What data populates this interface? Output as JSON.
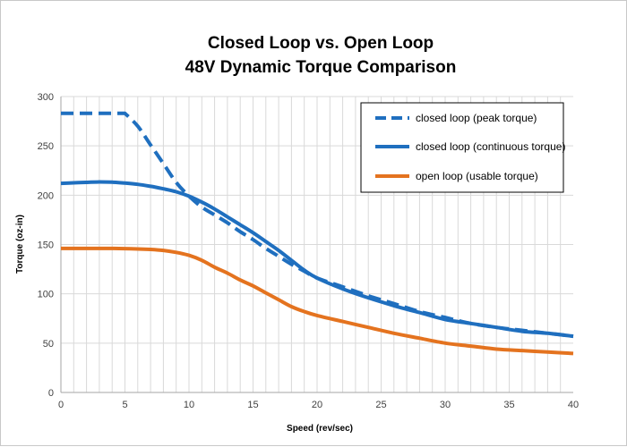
{
  "chart_data": {
    "type": "line",
    "title": "Closed Loop vs. Open Loop",
    "subtitle": "48V Dynamic Torque Comparison",
    "xlabel": "Speed (rev/sec)",
    "ylabel": "Torque (oz-in)",
    "xlim": [
      0,
      40
    ],
    "ylim": [
      0,
      300
    ],
    "x_ticks": [
      0,
      5,
      10,
      15,
      20,
      25,
      30,
      35,
      40
    ],
    "y_ticks": [
      0,
      50,
      100,
      150,
      200,
      250,
      300
    ],
    "x_tick_labels": [
      "0",
      "5",
      "10",
      "15",
      "20",
      "25",
      "30",
      "35",
      "40"
    ],
    "y_tick_labels": [
      "0",
      "50",
      "100",
      "150",
      "200",
      "250",
      "300"
    ],
    "grid": true,
    "legend_position": "top-right",
    "series": [
      {
        "name": "closed loop (peak torque)",
        "color": "#1f6fbf",
        "style": "dashed",
        "x": [
          0,
          5,
          6,
          7,
          8,
          9,
          10,
          11,
          12,
          13,
          14,
          15,
          16,
          17,
          18,
          19,
          20,
          22,
          24,
          26,
          28,
          30,
          32,
          34,
          36,
          38,
          40
        ],
        "y": [
          283,
          283,
          270,
          251,
          232,
          213,
          199,
          188,
          180,
          172,
          163,
          155,
          146,
          138,
          130,
          123,
          116,
          107,
          98,
          90,
          82,
          76,
          70,
          66,
          63,
          60,
          57
        ]
      },
      {
        "name": "closed loop (continuous torque)",
        "color": "#1f6fbf",
        "style": "solid",
        "x": [
          0,
          1,
          2,
          3,
          4,
          5,
          6,
          7,
          8,
          9,
          10,
          11,
          12,
          13,
          14,
          15,
          16,
          17,
          18,
          19,
          20,
          22,
          24,
          26,
          28,
          30,
          32,
          34,
          36,
          38,
          40
        ],
        "y": [
          212,
          212.5,
          213,
          213.4,
          213.2,
          212.3,
          211,
          209,
          206.5,
          203.5,
          199,
          193,
          186,
          178,
          170,
          162,
          153,
          144,
          134,
          124,
          116,
          105,
          96,
          88,
          81,
          74,
          70,
          66,
          62,
          60,
          57
        ]
      },
      {
        "name": "open loop (usable torque)",
        "color": "#e4731f",
        "style": "solid",
        "x": [
          0,
          2,
          4,
          6,
          7,
          8,
          9,
          10,
          11,
          12,
          13,
          14,
          15,
          16,
          17,
          18,
          19,
          20,
          22,
          24,
          26,
          28,
          30,
          32,
          34,
          36,
          38,
          40
        ],
        "y": [
          146,
          146,
          146,
          145.5,
          145,
          144,
          142,
          139,
          134,
          127,
          121,
          114,
          108,
          101,
          94,
          87,
          82,
          78,
          72,
          66,
          60,
          55,
          50,
          47,
          44,
          42.5,
          41,
          39.5
        ]
      }
    ]
  }
}
